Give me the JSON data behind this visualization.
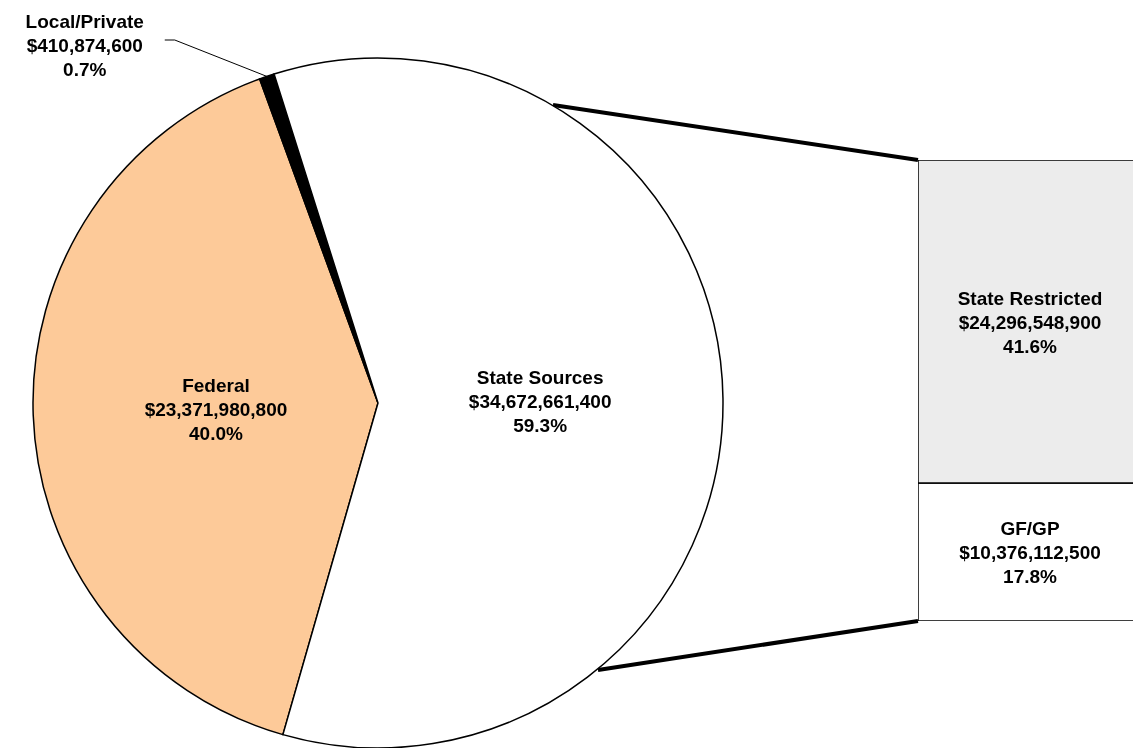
{
  "chart_data": [
    {
      "type": "pie",
      "categories": [
        "Federal",
        "Local/Private",
        "State Sources"
      ],
      "values": [
        23371980800,
        410874600,
        34672661400
      ],
      "colors": [
        "#fdca99",
        "#000000",
        "#ffffff"
      ],
      "value_labels": [
        "$23,371,980,800\n40.0%",
        "$410,874,600\n0.7%",
        "$34,672,661,400\n59.3%"
      ]
    },
    {
      "type": "bar",
      "stacked": true,
      "categories": [
        null
      ],
      "series": [
        {
          "name": "GF/GP",
          "color": "#ffffff",
          "values": [
            10376112500
          ],
          "value_labels": [
            "$10,376,112,500\n17.8%"
          ]
        },
        {
          "name": "State Restricted",
          "color": "#ececec",
          "values": [
            24296548900
          ],
          "value_labels": [
            "$24,296,548,900\n41.6%"
          ]
        }
      ]
    }
  ]
}
